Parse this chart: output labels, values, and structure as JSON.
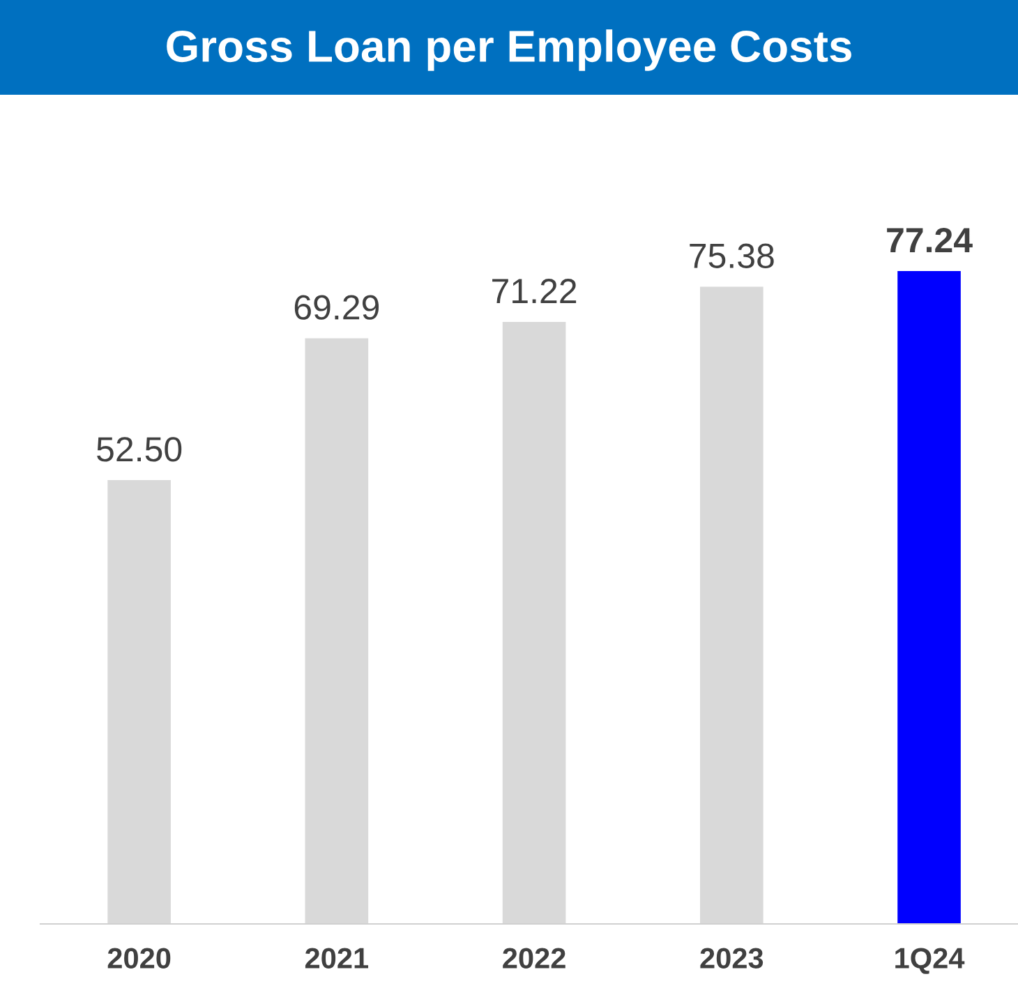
{
  "chart_data": {
    "type": "bar",
    "title": "Gross Loan per Employee Costs",
    "categories": [
      "2020",
      "2021",
      "2022",
      "2023",
      "1Q24"
    ],
    "values": [
      52.5,
      69.29,
      71.22,
      75.38,
      77.24
    ],
    "colors": [
      "#d9d9d9",
      "#d9d9d9",
      "#d9d9d9",
      "#d9d9d9",
      "#0000ff"
    ],
    "value_labels": [
      "52.50",
      "69.29",
      "71.22",
      "75.38",
      "77.24"
    ],
    "grid": false,
    "legend": false
  }
}
